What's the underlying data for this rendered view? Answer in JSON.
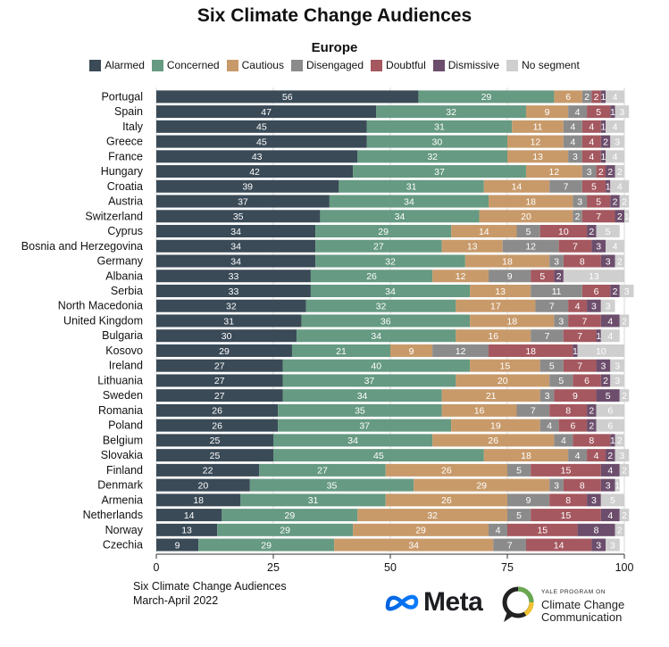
{
  "colors": {
    "Alarmed": "#3a4a57",
    "Concerned": "#669a82",
    "Cautious": "#c89a6a",
    "Disengaged": "#8b8b8b",
    "Doubtful": "#a5585f",
    "Dismissive": "#6c4e6c",
    "No segment": "#cfcfcf"
  },
  "chart_data": {
    "type": "bar",
    "orientation": "horizontal",
    "stacked": true,
    "title": "Six Climate Change Audiences",
    "subtitle": "Europe",
    "legend": [
      "Alarmed",
      "Concerned",
      "Cautious",
      "Disengaged",
      "Doubtful",
      "Dismissive",
      "No segment"
    ],
    "legend_position": "top",
    "xlim": [
      0,
      100
    ],
    "xticks": [
      "0",
      "25",
      "50",
      "75",
      "100"
    ],
    "categories": [
      "Portugal",
      "Spain",
      "Italy",
      "Greece",
      "France",
      "Hungary",
      "Croatia",
      "Austria",
      "Switzerland",
      "Cyprus",
      "Bosnia and Herzegovina",
      "Germany",
      "Albania",
      "Serbia",
      "North Macedonia",
      "United Kingdom",
      "Bulgaria",
      "Kosovo",
      "Ireland",
      "Lithuania",
      "Sweden",
      "Romania",
      "Poland",
      "Belgium",
      "Slovakia",
      "Finland",
      "Denmark",
      "Armenia",
      "Netherlands",
      "Norway",
      "Czechia"
    ],
    "series": [
      {
        "name": "Alarmed",
        "values": [
          56,
          47,
          45,
          45,
          43,
          42,
          39,
          37,
          35,
          34,
          34,
          34,
          33,
          33,
          32,
          31,
          30,
          29,
          27,
          27,
          27,
          26,
          26,
          25,
          25,
          22,
          20,
          18,
          14,
          13,
          9
        ]
      },
      {
        "name": "Concerned",
        "values": [
          29,
          32,
          31,
          30,
          32,
          37,
          31,
          34,
          34,
          29,
          27,
          32,
          26,
          34,
          32,
          36,
          34,
          21,
          40,
          37,
          34,
          35,
          37,
          34,
          45,
          27,
          35,
          31,
          29,
          29,
          29
        ]
      },
      {
        "name": "Cautious",
        "values": [
          6,
          9,
          11,
          12,
          13,
          12,
          14,
          18,
          20,
          14,
          13,
          18,
          12,
          13,
          17,
          18,
          16,
          9,
          15,
          20,
          21,
          16,
          19,
          26,
          18,
          26,
          29,
          26,
          32,
          29,
          34
        ]
      },
      {
        "name": "Disengaged",
        "values": [
          2,
          4,
          4,
          4,
          3,
          3,
          7,
          3,
          2,
          5,
          12,
          3,
          9,
          11,
          7,
          3,
          7,
          12,
          5,
          5,
          3,
          7,
          4,
          4,
          4,
          5,
          3,
          9,
          5,
          4,
          7
        ]
      },
      {
        "name": "Doubtful",
        "values": [
          2,
          5,
          4,
          4,
          4,
          2,
          5,
          5,
          7,
          10,
          7,
          8,
          5,
          6,
          4,
          7,
          7,
          18,
          7,
          6,
          9,
          8,
          6,
          8,
          4,
          15,
          8,
          8,
          15,
          15,
          14
        ]
      },
      {
        "name": "Dismissive",
        "values": [
          1,
          1,
          1,
          2,
          1,
          2,
          1,
          2,
          2,
          2,
          3,
          3,
          2,
          2,
          3,
          4,
          1,
          1,
          3,
          2,
          5,
          2,
          2,
          1,
          2,
          4,
          3,
          3,
          4,
          8,
          3
        ]
      },
      {
        "name": "No segment",
        "values": [
          4,
          3,
          4,
          3,
          4,
          2,
          4,
          2,
          1,
          5,
          4,
          2,
          13,
          3,
          3,
          2,
          4,
          10,
          3,
          3,
          2,
          6,
          6,
          2,
          3,
          2,
          1,
          5,
          2,
          2,
          3
        ]
      }
    ]
  },
  "footer": {
    "line1": "Six Climate Change Audiences",
    "line2": "March-April  2022"
  },
  "logos": {
    "meta": "Meta",
    "yale_small": "YALE PROGRAM ON",
    "yale_line1": "Climate Change",
    "yale_line2": "Communication"
  }
}
